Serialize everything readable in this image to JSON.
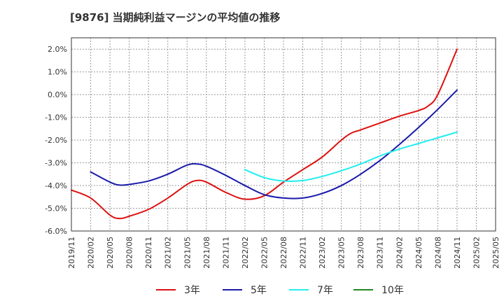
{
  "chart_data": {
    "type": "line",
    "title": "[9876]  当期純利益マージンの平均値の推移",
    "xlabel": "",
    "ylabel": "",
    "ylim": [
      -6,
      2.5
    ],
    "yticks": [
      2,
      1,
      0,
      -1,
      -2,
      -3,
      -4,
      -5,
      -6
    ],
    "ytick_labels": [
      "2.0%",
      "1.0%",
      "0.0%",
      "-1.0%",
      "-2.0%",
      "-3.0%",
      "-4.0%",
      "-5.0%",
      "-6.0%"
    ],
    "xtick_labels": [
      "2019/11",
      "2020/02",
      "2020/05",
      "2020/08",
      "2020/11",
      "2021/02",
      "2021/05",
      "2021/08",
      "2021/11",
      "2022/02",
      "2022/05",
      "2022/08",
      "2022/11",
      "2023/02",
      "2023/05",
      "2023/08",
      "2023/11",
      "2024/02",
      "2024/05",
      "2024/08",
      "2024/11",
      "2025/02",
      "2025/05"
    ],
    "grid": true,
    "legend_position": "bottom",
    "series": [
      {
        "name": "3年",
        "color": "#dd1111",
        "points": [
          [
            0,
            -4.2
          ],
          [
            1,
            -4.55
          ],
          [
            2,
            -5.3
          ],
          [
            2.5,
            -5.45
          ],
          [
            3,
            -5.35
          ],
          [
            4,
            -5.05
          ],
          [
            5,
            -4.55
          ],
          [
            6,
            -3.95
          ],
          [
            6.5,
            -3.78
          ],
          [
            7,
            -3.85
          ],
          [
            8,
            -4.3
          ],
          [
            9,
            -4.6
          ],
          [
            10,
            -4.45
          ],
          [
            11,
            -3.85
          ],
          [
            12,
            -3.3
          ],
          [
            13,
            -2.75
          ],
          [
            14,
            -2.0
          ],
          [
            14.5,
            -1.7
          ],
          [
            15,
            -1.55
          ],
          [
            16,
            -1.25
          ],
          [
            17,
            -0.95
          ],
          [
            18,
            -0.7
          ],
          [
            18.5,
            -0.5
          ],
          [
            19,
            0.0
          ],
          [
            20,
            2.0
          ]
        ]
      },
      {
        "name": "5年",
        "color": "#1a1aaa",
        "points": [
          [
            1,
            -3.4
          ],
          [
            2,
            -3.85
          ],
          [
            2.5,
            -3.98
          ],
          [
            3,
            -3.95
          ],
          [
            4,
            -3.8
          ],
          [
            5,
            -3.5
          ],
          [
            6,
            -3.1
          ],
          [
            6.5,
            -3.05
          ],
          [
            7,
            -3.15
          ],
          [
            8,
            -3.55
          ],
          [
            9,
            -4.0
          ],
          [
            10,
            -4.4
          ],
          [
            11,
            -4.55
          ],
          [
            12,
            -4.55
          ],
          [
            13,
            -4.35
          ],
          [
            14,
            -4.0
          ],
          [
            15,
            -3.5
          ],
          [
            16,
            -2.9
          ],
          [
            17,
            -2.2
          ],
          [
            18,
            -1.45
          ],
          [
            19,
            -0.65
          ],
          [
            20,
            0.2
          ]
        ]
      },
      {
        "name": "7年",
        "color": "#22eeee",
        "points": [
          [
            9,
            -3.3
          ],
          [
            10,
            -3.65
          ],
          [
            11,
            -3.8
          ],
          [
            12,
            -3.78
          ],
          [
            13,
            -3.6
          ],
          [
            14,
            -3.35
          ],
          [
            15,
            -3.05
          ],
          [
            16,
            -2.7
          ],
          [
            17,
            -2.4
          ],
          [
            18,
            -2.15
          ],
          [
            19,
            -1.9
          ],
          [
            20,
            -1.65
          ]
        ]
      },
      {
        "name": "10年",
        "color": "#228822",
        "points": []
      }
    ]
  }
}
